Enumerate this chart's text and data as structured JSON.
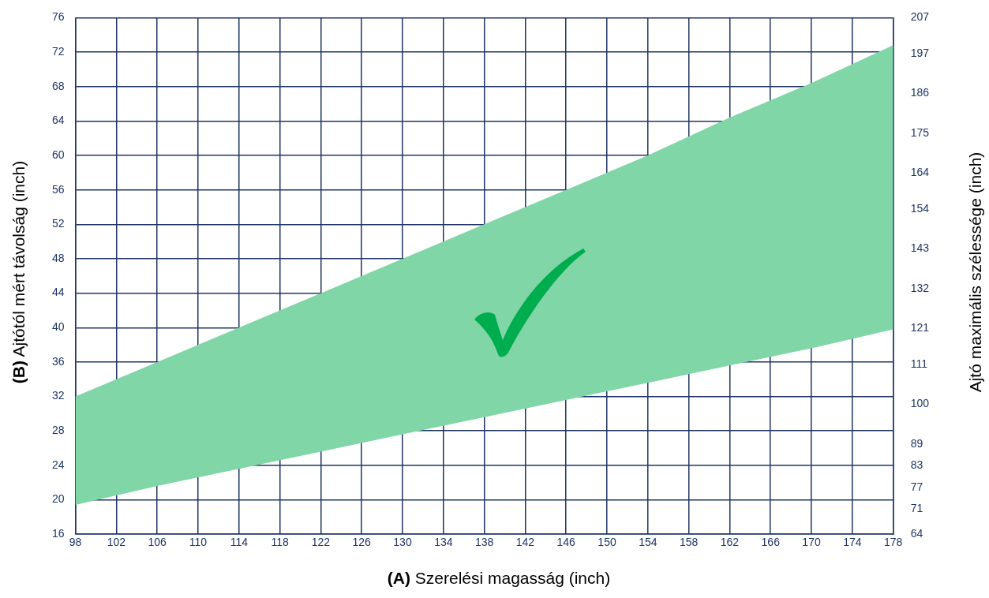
{
  "chart_data": {
    "type": "area",
    "xlabel": "(A) Szerelési magasság (inch)",
    "ylabel": "(B) Ajtótól mért távolság (inch)",
    "y2label": "Ajtó maximális szélessége (inch)",
    "xlim": [
      98,
      178
    ],
    "xticks": [
      98,
      102,
      106,
      110,
      114,
      118,
      122,
      126,
      130,
      134,
      138,
      142,
      146,
      150,
      154,
      158,
      162,
      166,
      170,
      174,
      178
    ],
    "ylim": [
      16,
      76
    ],
    "yticks": [
      16,
      20,
      24,
      28,
      32,
      36,
      40,
      44,
      48,
      52,
      56,
      60,
      64,
      68,
      72,
      76
    ],
    "y2lim": [
      64,
      207
    ],
    "y2ticks": [
      64,
      71,
      77,
      83,
      89,
      100,
      111,
      121,
      132,
      143,
      154,
      164,
      175,
      186,
      197,
      207
    ],
    "grid": true,
    "series": [
      {
        "type": "area",
        "color": "#80d6a6",
        "x": [
          98,
          106,
          114,
          122,
          130,
          138,
          146,
          154,
          162,
          170,
          178
        ],
        "values": [
          null,
          null,
          null,
          null,
          null,
          null,
          null,
          null,
          null,
          null,
          null
        ],
        "lower": [
          19.4,
          21.6,
          23.6,
          25.6,
          27.6,
          29.6,
          31.6,
          33.6,
          35.6,
          37.6,
          39.8
        ],
        "upper": [
          32,
          36,
          40,
          44,
          48,
          52,
          56,
          60,
          64.4,
          68.4,
          72.8
        ]
      }
    ]
  }
}
